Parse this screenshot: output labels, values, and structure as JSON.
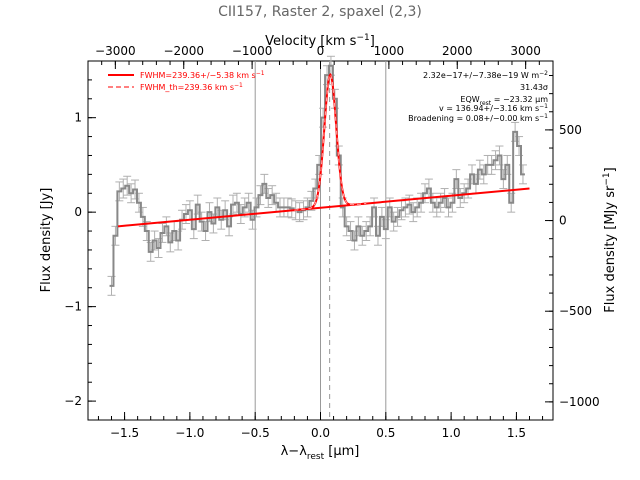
{
  "chart_data": {
    "type": "line",
    "title": "CII157, Raster 2, spaxel (2,3)",
    "xlabel": "λ−λ",
    "xlabel_sub": "rest",
    "xlabel_unit": " [μm]",
    "ylabel": "Flux density [Jy]",
    "top_xlabel": "Velocity [km s",
    "top_xlabel_sup": "−1",
    "top_xlabel_end": "]",
    "right_ylabel": "Flux density [MJy sr",
    "right_ylabel_sup": "−1",
    "right_ylabel_end": "]",
    "xlim": [
      -1.78,
      1.78
    ],
    "ylim": [
      -2.2,
      1.6
    ],
    "top_xlim": [
      -3400,
      3400
    ],
    "right_ylim": [
      -1100,
      880
    ],
    "x_ticks": [
      -1.5,
      -1.0,
      -0.5,
      0.0,
      0.5,
      1.0,
      1.5
    ],
    "x_tick_labels": [
      "−1.5",
      "−1.0",
      "−0.5",
      "0.0",
      "0.5",
      "1.0",
      "1.5"
    ],
    "y_ticks": [
      -2,
      -1,
      0,
      1
    ],
    "y_tick_labels": [
      "−2",
      "−1",
      "0",
      "1"
    ],
    "top_ticks": [
      -3000,
      -2000,
      -1000,
      0,
      1000,
      2000,
      3000
    ],
    "top_tick_labels": [
      "−3000",
      "−2000",
      "−1000",
      "0",
      "1000",
      "2000",
      "3000"
    ],
    "right_ticks": [
      -1000,
      -500,
      0,
      500
    ],
    "right_tick_labels": [
      "−1000",
      "−500",
      "0",
      "500"
    ],
    "vertical_lines": [
      -0.5,
      0.0,
      0.5
    ],
    "rest_line": 0.07,
    "grid": false,
    "legend_position": "top-left",
    "legend": [
      {
        "label": "FWHM=239.36+/−5.38 km s",
        "sup": "−1",
        "style": "solid",
        "color": "#ff0000"
      },
      {
        "label": "FWHM_th=239.36 km s",
        "sup": "−1",
        "style": "dashed",
        "color": "#ff0000"
      }
    ],
    "annotations": [
      {
        "text": "2.32e−17+/−7.38e−19 W m",
        "sup": "−2"
      },
      {
        "text": "31.43σ"
      },
      {
        "text": "EQW",
        "sub": "rest",
        "text2": " = −23.32 μm"
      },
      {
        "text": "v = 136.94+/−3.16 km s",
        "sup": "−1"
      },
      {
        "text": "Broadening = 0.08+/−0.00 km s",
        "sup": "−1"
      }
    ],
    "continuum": {
      "x0": -1.55,
      "y0": -0.15,
      "x1": 1.6,
      "y1": 0.25
    },
    "gaussian": {
      "center": 0.075,
      "amplitude": 1.4,
      "sigma": 0.045
    },
    "series": [
      {
        "name": "spectrum",
        "color": "#888888",
        "x": [
          -1.6,
          -1.57,
          -1.54,
          -1.51,
          -1.48,
          -1.45,
          -1.42,
          -1.39,
          -1.36,
          -1.33,
          -1.3,
          -1.27,
          -1.24,
          -1.21,
          -1.18,
          -1.15,
          -1.12,
          -1.09,
          -1.06,
          -1.03,
          -1.0,
          -0.97,
          -0.94,
          -0.91,
          -0.88,
          -0.85,
          -0.82,
          -0.79,
          -0.76,
          -0.73,
          -0.7,
          -0.67,
          -0.64,
          -0.61,
          -0.58,
          -0.55,
          -0.52,
          -0.49,
          -0.46,
          -0.43,
          -0.4,
          -0.37,
          -0.34,
          -0.31,
          -0.28,
          -0.25,
          -0.22,
          -0.19,
          -0.16,
          -0.13,
          -0.1,
          -0.07,
          -0.04,
          -0.01,
          0.02,
          0.05,
          0.08,
          0.11,
          0.14,
          0.17,
          0.2,
          0.23,
          0.26,
          0.29,
          0.32,
          0.35,
          0.38,
          0.41,
          0.44,
          0.47,
          0.5,
          0.53,
          0.56,
          0.59,
          0.62,
          0.65,
          0.68,
          0.71,
          0.74,
          0.77,
          0.8,
          0.83,
          0.86,
          0.89,
          0.92,
          0.95,
          0.98,
          1.01,
          1.04,
          1.07,
          1.1,
          1.13,
          1.16,
          1.19,
          1.22,
          1.25,
          1.28,
          1.31,
          1.34,
          1.37,
          1.4,
          1.43,
          1.46,
          1.49,
          1.52,
          1.55
        ],
        "y": [
          -0.78,
          -0.25,
          0.22,
          0.25,
          0.28,
          0.2,
          0.24,
          0.1,
          -0.05,
          -0.2,
          -0.42,
          -0.3,
          -0.38,
          -0.22,
          -0.15,
          -0.32,
          -0.2,
          -0.3,
          -0.08,
          -0.02,
          0.02,
          -0.18,
          0.08,
          -0.1,
          -0.2,
          0.0,
          -0.12,
          0.05,
          -0.08,
          0.02,
          -0.15,
          0.08,
          0.1,
          -0.02,
          0.05,
          0.1,
          -0.08,
          0.05,
          0.18,
          0.3,
          0.15,
          0.18,
          0.1,
          0.05,
          0.05,
          0.05,
          0.04,
          0.02,
          0.0,
          0.02,
          0.05,
          0.12,
          0.25,
          0.5,
          1.0,
          1.45,
          1.55,
          1.2,
          0.6,
          0.05,
          -0.15,
          -0.2,
          -0.3,
          -0.15,
          -0.25,
          -0.2,
          -0.15,
          0.05,
          -0.25,
          -0.05,
          -0.18,
          0.05,
          -0.1,
          -0.05,
          0.02,
          0.05,
          0.08,
          0.0,
          0.05,
          0.1,
          0.2,
          0.25,
          0.1,
          0.05,
          0.1,
          0.15,
          0.05,
          0.1,
          0.35,
          0.15,
          0.2,
          0.25,
          0.4,
          0.3,
          0.45,
          0.4,
          0.5,
          0.5,
          0.55,
          0.6,
          0.35,
          0.5,
          0.1,
          0.85,
          0.7,
          0.4
        ],
        "err": 0.1
      }
    ]
  }
}
